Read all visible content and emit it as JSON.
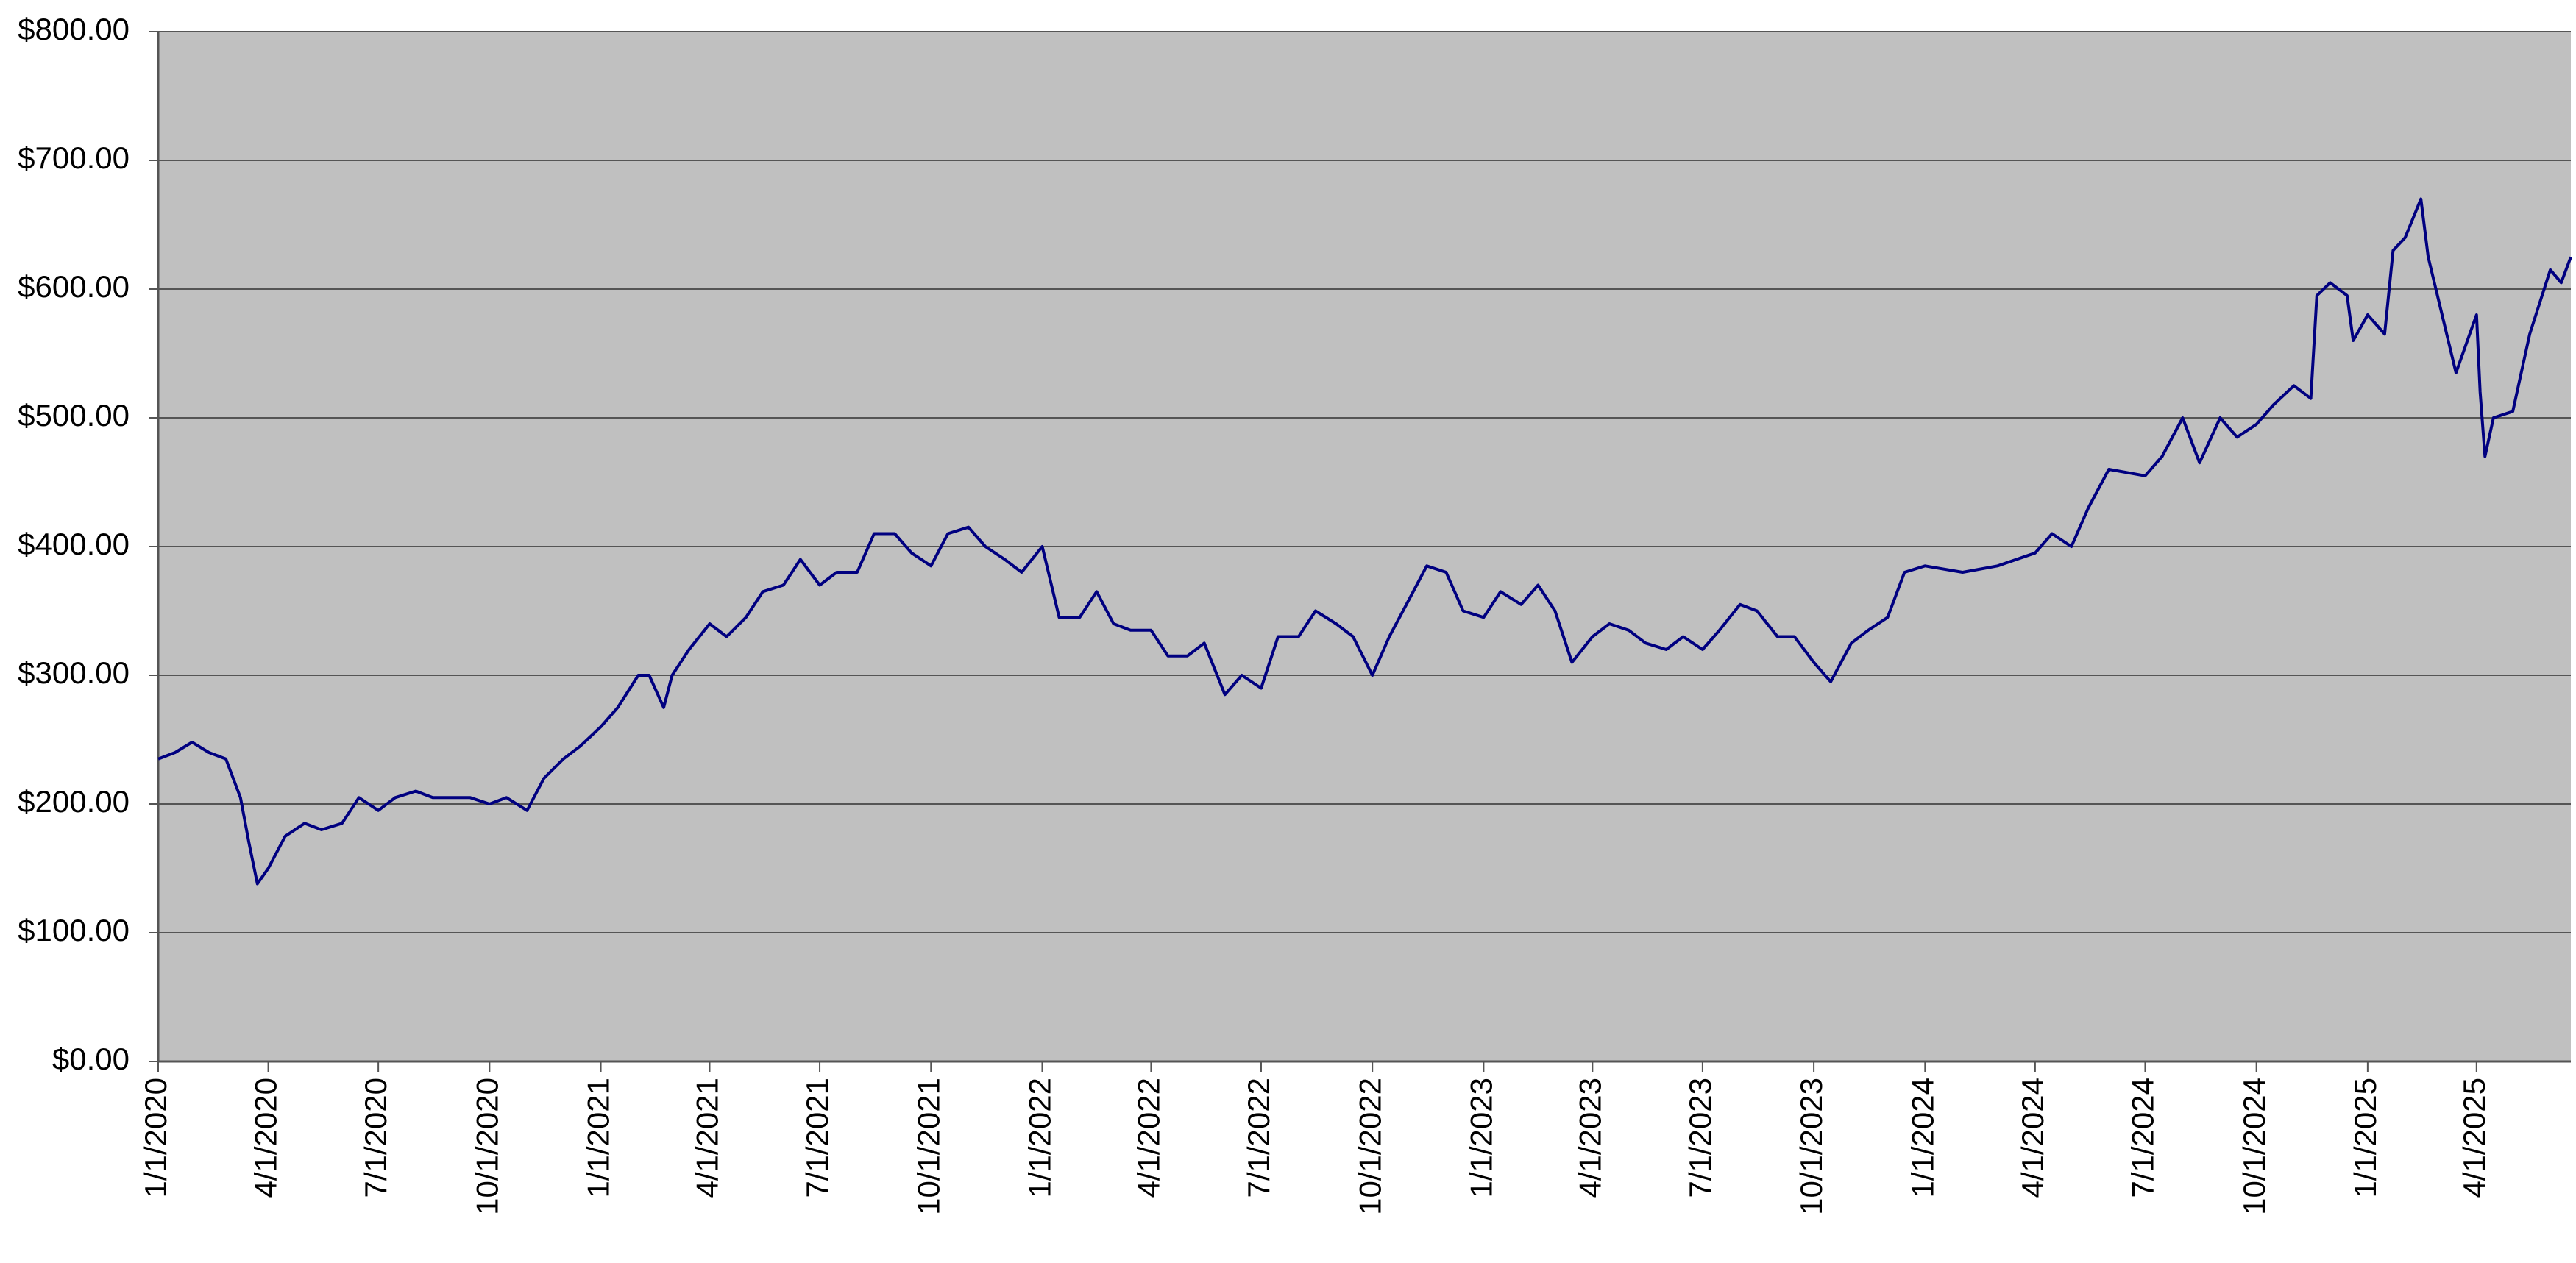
{
  "chart_data": {
    "type": "line",
    "x": [
      "1/1/2020",
      "1/15/2020",
      "1/29/2020",
      "2/12/2020",
      "2/26/2020",
      "3/9/2020",
      "3/16/2020",
      "3/23/2020",
      "4/1/2020",
      "4/15/2020",
      "5/1/2020",
      "5/15/2020",
      "6/1/2020",
      "6/15/2020",
      "7/1/2020",
      "7/15/2020",
      "8/1/2020",
      "8/15/2020",
      "9/1/2020",
      "9/15/2020",
      "10/1/2020",
      "10/15/2020",
      "11/1/2020",
      "11/15/2020",
      "12/1/2020",
      "12/15/2020",
      "1/1/2021",
      "1/15/2021",
      "2/1/2021",
      "2/10/2021",
      "2/22/2021",
      "3/1/2021",
      "3/15/2021",
      "4/1/2021",
      "4/15/2021",
      "5/1/2021",
      "5/15/2021",
      "6/1/2021",
      "6/15/2021",
      "7/1/2021",
      "7/15/2021",
      "8/1/2021",
      "8/15/2021",
      "9/1/2021",
      "9/15/2021",
      "10/1/2021",
      "10/15/2021",
      "11/1/2021",
      "11/15/2021",
      "12/1/2021",
      "12/15/2021",
      "1/1/2022",
      "1/15/2022",
      "2/1/2022",
      "2/15/2022",
      "3/1/2022",
      "3/15/2022",
      "4/1/2022",
      "4/15/2022",
      "5/1/2022",
      "5/15/2022",
      "6/1/2022",
      "6/15/2022",
      "7/1/2022",
      "7/15/2022",
      "8/1/2022",
      "8/15/2022",
      "9/1/2022",
      "9/15/2022",
      "10/1/2022",
      "10/15/2022",
      "11/1/2022",
      "11/15/2022",
      "12/1/2022",
      "12/15/2022",
      "1/1/2023",
      "1/15/2023",
      "2/1/2023",
      "2/15/2023",
      "3/1/2023",
      "3/15/2023",
      "4/1/2023",
      "4/15/2023",
      "5/1/2023",
      "5/15/2023",
      "6/1/2023",
      "6/15/2023",
      "7/1/2023",
      "7/15/2023",
      "8/1/2023",
      "8/15/2023",
      "9/1/2023",
      "9/15/2023",
      "10/1/2023",
      "10/15/2023",
      "11/1/2023",
      "11/15/2023",
      "12/1/2023",
      "12/15/2023",
      "1/1/2024",
      "2/1/2024",
      "3/1/2024",
      "4/1/2024",
      "4/15/2024",
      "5/1/2024",
      "5/15/2024",
      "6/1/2024",
      "7/1/2024",
      "7/15/2024",
      "8/1/2024",
      "8/15/2024",
      "9/1/2024",
      "9/15/2024",
      "10/1/2024",
      "10/15/2024",
      "11/1/2024",
      "11/15/2024",
      "11/20/2024",
      "12/1/2024",
      "12/15/2024",
      "12/20/2024",
      "1/1/2025",
      "1/15/2025",
      "1/22/2025",
      "2/1/2025",
      "2/14/2025",
      "2/20/2025",
      "3/1/2025",
      "3/15/2025",
      "4/1/2025",
      "4/4/2025",
      "4/8/2025",
      "4/15/2025",
      "5/1/2025",
      "5/15/2025",
      "6/1/2025",
      "6/10/2025",
      "6/18/2025"
    ],
    "series": [
      {
        "color": "#000080",
        "values": [
          235,
          240,
          248,
          240,
          235,
          205,
          170,
          138,
          150,
          175,
          185,
          180,
          185,
          205,
          195,
          205,
          210,
          205,
          205,
          205,
          200,
          205,
          195,
          220,
          235,
          245,
          260,
          275,
          300,
          300,
          275,
          300,
          320,
          340,
          330,
          345,
          365,
          370,
          390,
          370,
          380,
          380,
          410,
          410,
          395,
          385,
          410,
          415,
          400,
          390,
          380,
          400,
          345,
          345,
          365,
          340,
          335,
          335,
          315,
          315,
          325,
          285,
          300,
          290,
          330,
          330,
          350,
          340,
          330,
          300,
          330,
          360,
          385,
          380,
          350,
          345,
          365,
          355,
          370,
          350,
          310,
          330,
          340,
          335,
          325,
          320,
          330,
          320,
          335,
          355,
          350,
          330,
          330,
          310,
          295,
          325,
          335,
          345,
          380,
          385,
          380,
          385,
          395,
          410,
          400,
          430,
          460,
          455,
          470,
          500,
          465,
          500,
          485,
          495,
          510,
          525,
          515,
          595,
          605,
          595,
          560,
          580,
          565,
          630,
          640,
          670,
          625,
          590,
          535,
          580,
          520,
          470,
          500,
          505,
          565,
          615,
          605,
          625
        ]
      }
    ],
    "xlim": [
      "1/1/2020",
      "6/18/2025"
    ],
    "xticks": [
      "1/1/2020",
      "4/1/2020",
      "7/1/2020",
      "10/1/2020",
      "1/1/2021",
      "4/1/2021",
      "7/1/2021",
      "10/1/2021",
      "1/1/2022",
      "4/1/2022",
      "7/1/2022",
      "10/1/2022",
      "1/1/2023",
      "4/1/2023",
      "7/1/2023",
      "10/1/2023",
      "1/1/2024",
      "4/1/2024",
      "7/1/2024",
      "10/1/2024",
      "1/1/2025",
      "4/1/2025"
    ],
    "ylim": [
      0,
      800
    ],
    "yticks": [
      {
        "value": 0,
        "label": "$0.00"
      },
      {
        "value": 100,
        "label": "$100.00"
      },
      {
        "value": 200,
        "label": "$200.00"
      },
      {
        "value": 300,
        "label": "$300.00"
      },
      {
        "value": 400,
        "label": "$400.00"
      },
      {
        "value": 500,
        "label": "$500.00"
      },
      {
        "value": 600,
        "label": "$600.00"
      },
      {
        "value": 700,
        "label": "$700.00"
      },
      {
        "value": 800,
        "label": "$800.00"
      }
    ],
    "grid": true
  }
}
